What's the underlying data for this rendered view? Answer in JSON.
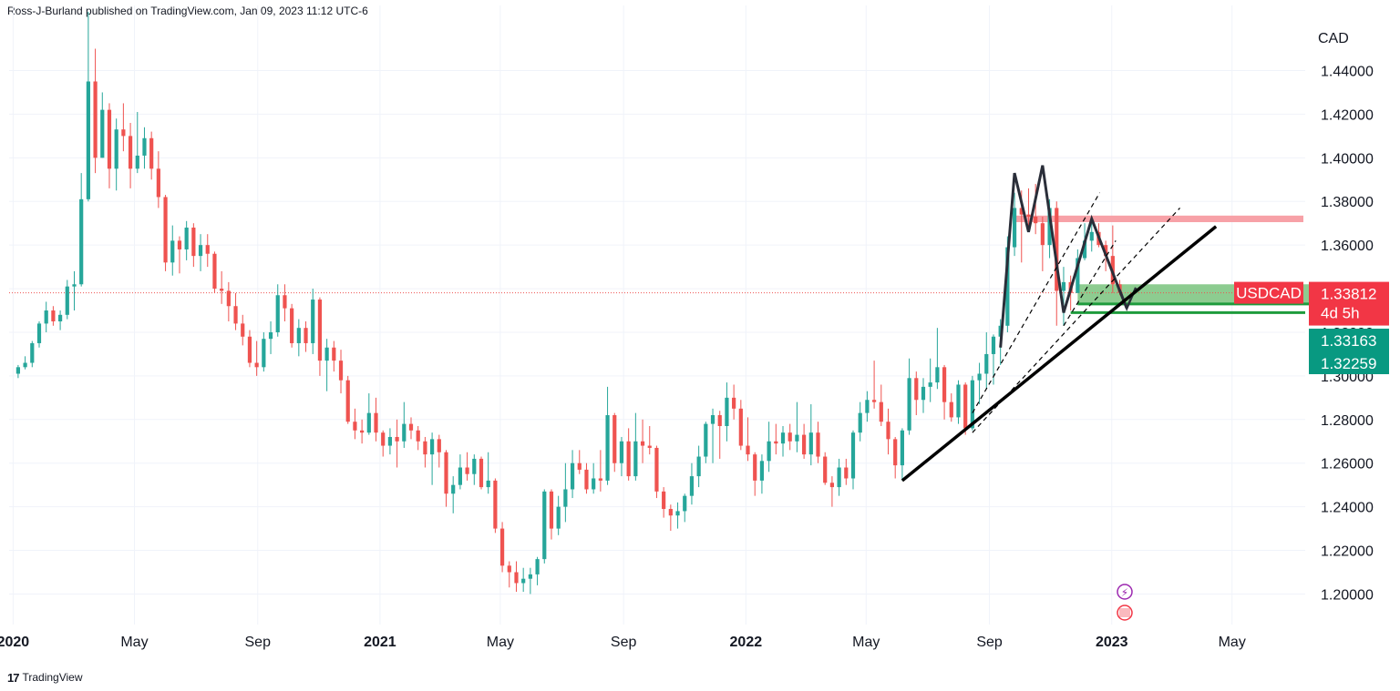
{
  "header": {
    "publisher": "Ross-J-Burland published on TradingView.com, Jan 09, 2023 11:12 UTC-6"
  },
  "footer": {
    "brand": "TradingView",
    "logo_glyph": "17"
  },
  "colors": {
    "up": "#26a69a",
    "down": "#ef5350",
    "grid": "#f0f3fa",
    "resistance_band": "#f7a1a7",
    "support_band": "#81c784",
    "support_line": "#1e9b3c",
    "price_tag_red": "#f23645",
    "price_tag_green": "#089981"
  },
  "chart_data": {
    "type": "candlestick",
    "symbol": "USDCAD",
    "timeframe": "weekly",
    "currency": "CAD",
    "x_tick_labels": [
      "2020",
      "May",
      "Sep",
      "2021",
      "May",
      "Sep",
      "2022",
      "May",
      "Sep",
      "2023",
      "May"
    ],
    "y_tick_labels": [
      "1.44000",
      "1.42000",
      "1.40000",
      "1.38000",
      "1.36000",
      "1.34000",
      "1.32000",
      "1.30000",
      "1.28000",
      "1.26000",
      "1.24000",
      "1.22000",
      "1.20000"
    ],
    "y_ticks": [
      1.44,
      1.42,
      1.4,
      1.38,
      1.36,
      1.34,
      1.32,
      1.3,
      1.28,
      1.26,
      1.24,
      1.22,
      1.2
    ],
    "ylim": [
      1.186,
      1.4615
    ],
    "x_range": [
      "2019-12-28",
      "2023-07-13"
    ],
    "grid": true,
    "candles": [
      [
        "2020-01-06",
        1.301,
        1.305,
        1.299,
        1.304
      ],
      [
        "2020-01-13",
        1.304,
        1.309,
        1.303,
        1.306
      ],
      [
        "2020-01-20",
        1.306,
        1.316,
        1.304,
        1.315
      ],
      [
        "2020-01-27",
        1.315,
        1.325,
        1.313,
        1.324
      ],
      [
        "2020-02-03",
        1.324,
        1.334,
        1.32,
        1.33
      ],
      [
        "2020-02-10",
        1.33,
        1.332,
        1.323,
        1.325
      ],
      [
        "2020-02-17",
        1.325,
        1.33,
        1.321,
        1.328
      ],
      [
        "2020-02-24",
        1.328,
        1.344,
        1.326,
        1.341
      ],
      [
        "2020-03-02",
        1.341,
        1.348,
        1.33,
        1.342
      ],
      [
        "2020-03-09",
        1.342,
        1.393,
        1.341,
        1.381
      ],
      [
        "2020-03-16",
        1.381,
        1.467,
        1.38,
        1.435
      ],
      [
        "2020-03-23",
        1.435,
        1.45,
        1.393,
        1.4
      ],
      [
        "2020-03-30",
        1.4,
        1.43,
        1.4,
        1.422
      ],
      [
        "2020-04-06",
        1.422,
        1.425,
        1.386,
        1.395
      ],
      [
        "2020-04-13",
        1.395,
        1.418,
        1.385,
        1.413
      ],
      [
        "2020-04-20",
        1.413,
        1.425,
        1.403,
        1.41
      ],
      [
        "2020-04-27",
        1.41,
        1.416,
        1.386,
        1.395
      ],
      [
        "2020-05-04",
        1.395,
        1.421,
        1.393,
        1.401
      ],
      [
        "2020-05-11",
        1.401,
        1.414,
        1.395,
        1.409
      ],
      [
        "2020-05-18",
        1.409,
        1.412,
        1.39,
        1.395
      ],
      [
        "2020-05-25",
        1.395,
        1.403,
        1.377,
        1.382
      ],
      [
        "2020-06-01",
        1.382,
        1.383,
        1.348,
        1.352
      ],
      [
        "2020-06-08",
        1.352,
        1.369,
        1.346,
        1.362
      ],
      [
        "2020-06-15",
        1.362,
        1.364,
        1.347,
        1.358
      ],
      [
        "2020-06-22",
        1.358,
        1.371,
        1.353,
        1.368
      ],
      [
        "2020-06-29",
        1.368,
        1.37,
        1.35,
        1.355
      ],
      [
        "2020-07-06",
        1.355,
        1.365,
        1.348,
        1.36
      ],
      [
        "2020-07-13",
        1.36,
        1.365,
        1.35,
        1.356
      ],
      [
        "2020-07-20",
        1.356,
        1.357,
        1.338,
        1.34
      ],
      [
        "2020-07-27",
        1.34,
        1.348,
        1.333,
        1.339
      ],
      [
        "2020-08-03",
        1.339,
        1.343,
        1.325,
        1.332
      ],
      [
        "2020-08-10",
        1.332,
        1.338,
        1.321,
        1.324
      ],
      [
        "2020-08-17",
        1.324,
        1.328,
        1.314,
        1.318
      ],
      [
        "2020-08-24",
        1.318,
        1.321,
        1.304,
        1.306
      ],
      [
        "2020-08-31",
        1.306,
        1.316,
        1.3,
        1.304
      ],
      [
        "2020-09-07",
        1.304,
        1.32,
        1.302,
        1.317
      ],
      [
        "2020-09-14",
        1.317,
        1.325,
        1.31,
        1.32
      ],
      [
        "2020-09-21",
        1.32,
        1.342,
        1.318,
        1.337
      ],
      [
        "2020-09-28",
        1.337,
        1.342,
        1.325,
        1.331
      ],
      [
        "2020-10-05",
        1.331,
        1.333,
        1.313,
        1.315
      ],
      [
        "2020-10-12",
        1.315,
        1.326,
        1.309,
        1.322
      ],
      [
        "2020-10-19",
        1.322,
        1.325,
        1.311,
        1.315
      ],
      [
        "2020-10-26",
        1.315,
        1.34,
        1.31,
        1.335
      ],
      [
        "2020-11-02",
        1.335,
        1.336,
        1.3,
        1.307
      ],
      [
        "2020-11-09",
        1.307,
        1.317,
        1.293,
        1.313
      ],
      [
        "2020-11-16",
        1.313,
        1.316,
        1.302,
        1.307
      ],
      [
        "2020-11-23",
        1.307,
        1.312,
        1.292,
        1.298
      ],
      [
        "2020-11-30",
        1.298,
        1.3,
        1.278,
        1.279
      ],
      [
        "2020-12-07",
        1.279,
        1.285,
        1.271,
        1.275
      ],
      [
        "2020-12-14",
        1.275,
        1.28,
        1.269,
        1.274
      ],
      [
        "2020-12-21",
        1.274,
        1.292,
        1.273,
        1.283
      ],
      [
        "2020-12-28",
        1.283,
        1.29,
        1.27,
        1.274
      ],
      [
        "2021-01-04",
        1.274,
        1.275,
        1.263,
        1.268
      ],
      [
        "2021-01-11",
        1.268,
        1.276,
        1.264,
        1.272
      ],
      [
        "2021-01-18",
        1.272,
        1.28,
        1.258,
        1.27
      ],
      [
        "2021-01-25",
        1.27,
        1.288,
        1.267,
        1.278
      ],
      [
        "2021-02-01",
        1.278,
        1.281,
        1.271,
        1.275
      ],
      [
        "2021-02-08",
        1.275,
        1.277,
        1.266,
        1.27
      ],
      [
        "2021-02-15",
        1.27,
        1.272,
        1.258,
        1.264
      ],
      [
        "2021-02-22",
        1.264,
        1.274,
        1.25,
        1.271
      ],
      [
        "2021-03-01",
        1.271,
        1.273,
        1.258,
        1.265
      ],
      [
        "2021-03-08",
        1.265,
        1.266,
        1.24,
        1.246
      ],
      [
        "2021-03-15",
        1.246,
        1.254,
        1.237,
        1.25
      ],
      [
        "2021-03-22",
        1.25,
        1.264,
        1.248,
        1.258
      ],
      [
        "2021-03-29",
        1.258,
        1.265,
        1.252,
        1.255
      ],
      [
        "2021-04-05",
        1.255,
        1.264,
        1.25,
        1.262
      ],
      [
        "2021-04-12",
        1.262,
        1.263,
        1.248,
        1.249
      ],
      [
        "2021-04-19",
        1.249,
        1.265,
        1.246,
        1.252
      ],
      [
        "2021-04-26",
        1.252,
        1.253,
        1.228,
        1.23
      ],
      [
        "2021-05-03",
        1.23,
        1.233,
        1.21,
        1.213
      ],
      [
        "2021-05-10",
        1.213,
        1.215,
        1.203,
        1.21
      ],
      [
        "2021-05-17",
        1.21,
        1.215,
        1.201,
        1.205
      ],
      [
        "2021-05-24",
        1.205,
        1.212,
        1.201,
        1.207
      ],
      [
        "2021-05-31",
        1.207,
        1.212,
        1.2,
        1.209
      ],
      [
        "2021-06-07",
        1.209,
        1.217,
        1.204,
        1.216
      ],
      [
        "2021-06-14",
        1.216,
        1.248,
        1.214,
        1.247
      ],
      [
        "2021-06-21",
        1.247,
        1.248,
        1.225,
        1.23
      ],
      [
        "2021-06-28",
        1.23,
        1.245,
        1.227,
        1.24
      ],
      [
        "2021-07-05",
        1.24,
        1.26,
        1.233,
        1.248
      ],
      [
        "2021-07-12",
        1.248,
        1.266,
        1.244,
        1.26
      ],
      [
        "2021-07-19",
        1.26,
        1.266,
        1.255,
        1.257
      ],
      [
        "2021-07-26",
        1.257,
        1.26,
        1.246,
        1.248
      ],
      [
        "2021-08-02",
        1.248,
        1.26,
        1.246,
        1.253
      ],
      [
        "2021-08-09",
        1.253,
        1.266,
        1.247,
        1.252
      ],
      [
        "2021-08-16",
        1.252,
        1.295,
        1.25,
        1.282
      ],
      [
        "2021-08-23",
        1.282,
        1.283,
        1.256,
        1.26
      ],
      [
        "2021-08-30",
        1.26,
        1.272,
        1.254,
        1.27
      ],
      [
        "2021-09-06",
        1.27,
        1.276,
        1.252,
        1.254
      ],
      [
        "2021-09-13",
        1.254,
        1.283,
        1.252,
        1.27
      ],
      [
        "2021-09-20",
        1.27,
        1.28,
        1.26,
        1.268
      ],
      [
        "2021-09-27",
        1.268,
        1.277,
        1.264,
        1.267
      ],
      [
        "2021-10-04",
        1.267,
        1.268,
        1.244,
        1.247
      ],
      [
        "2021-10-11",
        1.247,
        1.249,
        1.235,
        1.239
      ],
      [
        "2021-10-18",
        1.239,
        1.241,
        1.229,
        1.236
      ],
      [
        "2021-10-25",
        1.236,
        1.242,
        1.23,
        1.238
      ],
      [
        "2021-11-01",
        1.238,
        1.246,
        1.233,
        1.245
      ],
      [
        "2021-11-08",
        1.245,
        1.26,
        1.241,
        1.254
      ],
      [
        "2021-11-15",
        1.254,
        1.268,
        1.249,
        1.263
      ],
      [
        "2021-11-22",
        1.263,
        1.279,
        1.26,
        1.278
      ],
      [
        "2021-11-29",
        1.278,
        1.285,
        1.26,
        1.282
      ],
      [
        "2021-12-06",
        1.282,
        1.284,
        1.262,
        1.277
      ],
      [
        "2021-12-13",
        1.277,
        1.297,
        1.27,
        1.29
      ],
      [
        "2021-12-20",
        1.29,
        1.296,
        1.28,
        1.285
      ],
      [
        "2021-12-27",
        1.285,
        1.289,
        1.266,
        1.268
      ],
      [
        "2022-01-03",
        1.268,
        1.281,
        1.261,
        1.264
      ],
      [
        "2022-01-10",
        1.264,
        1.265,
        1.245,
        1.252
      ],
      [
        "2022-01-17",
        1.252,
        1.264,
        1.246,
        1.261
      ],
      [
        "2022-01-24",
        1.261,
        1.279,
        1.256,
        1.27
      ],
      [
        "2022-01-31",
        1.27,
        1.278,
        1.264,
        1.269
      ],
      [
        "2022-02-07",
        1.269,
        1.277,
        1.263,
        1.274
      ],
      [
        "2022-02-14",
        1.274,
        1.278,
        1.266,
        1.27
      ],
      [
        "2022-02-21",
        1.27,
        1.288,
        1.265,
        1.273
      ],
      [
        "2022-02-28",
        1.273,
        1.278,
        1.262,
        1.264
      ],
      [
        "2022-03-07",
        1.264,
        1.287,
        1.259,
        1.274
      ],
      [
        "2022-03-14",
        1.274,
        1.279,
        1.26,
        1.263
      ],
      [
        "2022-03-21",
        1.263,
        1.265,
        1.25,
        1.251
      ],
      [
        "2022-03-28",
        1.251,
        1.254,
        1.24,
        1.249
      ],
      [
        "2022-04-04",
        1.249,
        1.262,
        1.245,
        1.258
      ],
      [
        "2022-04-11",
        1.258,
        1.262,
        1.25,
        1.253
      ],
      [
        "2022-04-18",
        1.253,
        1.275,
        1.248,
        1.274
      ],
      [
        "2022-04-25",
        1.274,
        1.288,
        1.27,
        1.283
      ],
      [
        "2022-05-02",
        1.283,
        1.293,
        1.279,
        1.289
      ],
      [
        "2022-05-09",
        1.289,
        1.307,
        1.285,
        1.288
      ],
      [
        "2022-05-16",
        1.288,
        1.296,
        1.277,
        1.279
      ],
      [
        "2022-05-23",
        1.279,
        1.285,
        1.264,
        1.271
      ],
      [
        "2022-05-30",
        1.271,
        1.272,
        1.253,
        1.259
      ],
      [
        "2022-06-06",
        1.259,
        1.276,
        1.252,
        1.275
      ],
      [
        "2022-06-13",
        1.275,
        1.308,
        1.273,
        1.299
      ],
      [
        "2022-06-20",
        1.299,
        1.302,
        1.282,
        1.289
      ],
      [
        "2022-06-27",
        1.289,
        1.299,
        1.283,
        1.295
      ],
      [
        "2022-07-04",
        1.295,
        1.308,
        1.288,
        1.297
      ],
      [
        "2022-07-11",
        1.297,
        1.322,
        1.294,
        1.304
      ],
      [
        "2022-07-18",
        1.304,
        1.305,
        1.28,
        1.288
      ],
      [
        "2022-07-25",
        1.288,
        1.292,
        1.279,
        1.281
      ],
      [
        "2022-08-01",
        1.281,
        1.298,
        1.278,
        1.296
      ],
      [
        "2022-08-08",
        1.296,
        1.297,
        1.273,
        1.276
      ],
      [
        "2022-08-15",
        1.276,
        1.3,
        1.275,
        1.298
      ],
      [
        "2022-08-22",
        1.298,
        1.306,
        1.287,
        1.301
      ],
      [
        "2022-08-29",
        1.301,
        1.32,
        1.294,
        1.31
      ],
      [
        "2022-09-05",
        1.31,
        1.319,
        1.296,
        1.318
      ],
      [
        "2022-09-12",
        1.318,
        1.326,
        1.305,
        1.323
      ],
      [
        "2022-09-19",
        1.323,
        1.364,
        1.32,
        1.359
      ],
      [
        "2022-09-26",
        1.359,
        1.384,
        1.355,
        1.377
      ],
      [
        "2022-10-03",
        1.377,
        1.385,
        1.352,
        1.374
      ],
      [
        "2022-10-10",
        1.374,
        1.386,
        1.368,
        1.373
      ],
      [
        "2022-10-17",
        1.373,
        1.388,
        1.365,
        1.37
      ],
      [
        "2022-10-24",
        1.37,
        1.373,
        1.348,
        1.36
      ],
      [
        "2022-10-31",
        1.36,
        1.381,
        1.354,
        1.377
      ],
      [
        "2022-11-07",
        1.377,
        1.38,
        1.323,
        1.339
      ],
      [
        "2022-11-14",
        1.339,
        1.35,
        1.323,
        1.343
      ],
      [
        "2022-11-21",
        1.343,
        1.346,
        1.33,
        1.338
      ],
      [
        "2022-11-28",
        1.338,
        1.358,
        1.339,
        1.354
      ],
      [
        "2022-12-05",
        1.354,
        1.37,
        1.353,
        1.362
      ],
      [
        "2022-12-12",
        1.362,
        1.37,
        1.357,
        1.366
      ],
      [
        "2022-12-19",
        1.366,
        1.37,
        1.359,
        1.36
      ],
      [
        "2022-12-26",
        1.36,
        1.362,
        1.348,
        1.355
      ],
      [
        "2023-01-02",
        1.355,
        1.369,
        1.338,
        1.342
      ],
      [
        "2023-01-09",
        1.342,
        1.344,
        1.337,
        1.3381
      ]
    ],
    "annotations": {
      "resistance_zone": [
        1.3705,
        1.3735
      ],
      "support_zone": [
        1.333,
        1.342
      ],
      "support_line": 1.32259,
      "m_pattern": [
        [
          "2022-09-12",
          1.313
        ],
        [
          "2022-09-26",
          1.393
        ],
        [
          "2022-10-10",
          1.366
        ],
        [
          "2022-10-24",
          1.3965
        ],
        [
          "2022-11-14",
          1.329
        ],
        [
          "2022-12-12",
          1.372
        ],
        [
          "2023-01-09",
          1.339
        ],
        [
          "2023-01-16",
          1.331
        ]
      ],
      "arrow_head": [
        [
          "2023-01-09",
          1.3395
        ],
        [
          "2023-01-16",
          1.331
        ],
        [
          "2023-01-25",
          1.3405
        ]
      ],
      "trendline_main": [
        [
          "2022-06-06",
          1.252
        ],
        [
          "2023-04-15",
          1.3685
        ]
      ],
      "trendline_dashed_1": [
        [
          "2022-08-15",
          1.274
        ],
        [
          "2023-03-10",
          1.377
        ]
      ],
      "trendline_dashed_2": [
        [
          "2022-08-15",
          1.283
        ],
        [
          "2022-12-20",
          1.384
        ]
      ],
      "trendline_dashed_3": [
        [
          "2022-11-14",
          1.323
        ],
        [
          "2023-01-05",
          1.362
        ]
      ]
    },
    "labels": {
      "currency": "CAD",
      "symbol_tag": "USDCAD",
      "last_price": "1.33812",
      "last_price_value": 1.33812,
      "countdown": "4d 5h",
      "level_1": "1.33163",
      "level_1_value": 1.33163,
      "level_2": "1.32259",
      "level_2_value": 1.32259
    }
  }
}
